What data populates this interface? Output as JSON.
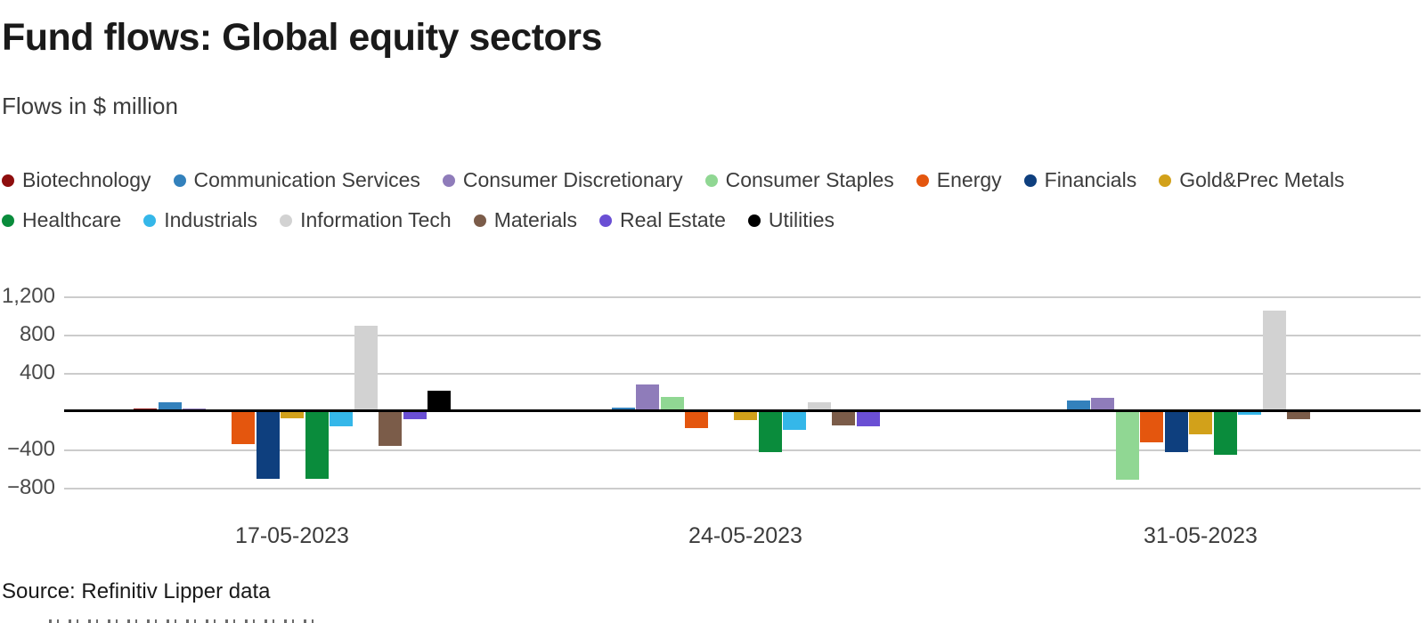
{
  "header": {
    "title": "Fund flows: Global equity sectors",
    "subtitle": "Flows in $ million"
  },
  "source": "Source: Refinitiv Lipper data",
  "chart_data": {
    "type": "bar",
    "unit": "$ million",
    "title": "Fund flows: Global equity sectors",
    "subtitle": "Flows in $ million",
    "categories": [
      "17-05-2023",
      "24-05-2023",
      "31-05-2023"
    ],
    "series": [
      {
        "name": "Biotechnology",
        "color": "#8e0e0e",
        "values": [
          30,
          20,
          25
        ]
      },
      {
        "name": "Communication Services",
        "color": "#3381bc",
        "values": [
          100,
          40,
          115
        ]
      },
      {
        "name": "Consumer Discretionary",
        "color": "#8f7cba",
        "values": [
          30,
          280,
          145
        ]
      },
      {
        "name": "Consumer Staples",
        "color": "#90d793",
        "values": [
          25,
          150,
          -715
        ]
      },
      {
        "name": "Energy",
        "color": "#e4560e",
        "values": [
          -340,
          -170,
          -325
        ]
      },
      {
        "name": "Financials",
        "color": "#0e3f7e",
        "values": [
          -700,
          0,
          -420
        ]
      },
      {
        "name": "Gold&Prec Metals",
        "color": "#d2a11a",
        "values": [
          -70,
          -90,
          -240
        ]
      },
      {
        "name": "Healthcare",
        "color": "#0a8c3c",
        "values": [
          -700,
          -420,
          -450
        ]
      },
      {
        "name": "Industrials",
        "color": "#35b7e9",
        "values": [
          -150,
          -190,
          -30
        ]
      },
      {
        "name": "Information Tech",
        "color": "#d2d2d2",
        "values": [
          900,
          100,
          1060
        ]
      },
      {
        "name": "Materials",
        "color": "#7b5c49",
        "values": [
          -360,
          -140,
          -80
        ]
      },
      {
        "name": "Real Estate",
        "color": "#6a4fd4",
        "values": [
          -75,
          -150,
          0
        ]
      },
      {
        "name": "Utilities",
        "color": "#000000",
        "values": [
          220,
          0,
          15
        ]
      }
    ],
    "yticks": [
      {
        "label": "1,200",
        "value": 1200
      },
      {
        "label": "800",
        "value": 800
      },
      {
        "label": "400",
        "value": 400
      },
      {
        "label": "−400",
        "value": -400
      },
      {
        "label": "−800",
        "value": -800
      }
    ],
    "ylim": [
      -900,
      1300
    ],
    "grid": true,
    "legend_position": "top",
    "legend_rows": [
      7,
      6
    ]
  }
}
